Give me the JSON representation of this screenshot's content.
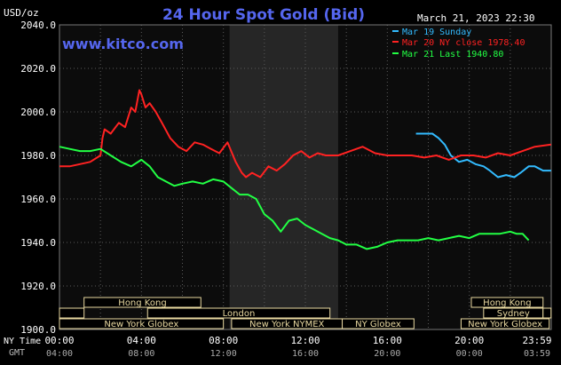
{
  "header": {
    "units": "USD/oz",
    "title": "24 Hour Spot Gold (Bid)",
    "timestamp": "March 21, 2023 22:30",
    "watermark": "www.kitco.com"
  },
  "legend": [
    {
      "label": "Mar 19 Sunday",
      "color": "#33bbff"
    },
    {
      "label": "Mar 20 NY close 1978.40",
      "color": "#ff2222"
    },
    {
      "label": "Mar 21 Last 1940.80",
      "color": "#22ff44"
    }
  ],
  "axis_labels": {
    "ny_time": "NY Time",
    "gmt": "GMT"
  },
  "markets": {
    "row1": [
      {
        "name": "Hong Kong"
      },
      {
        "name": "Hong Kong"
      }
    ],
    "row2": [
      {
        "name": "London"
      },
      {
        "name": "Sydney"
      }
    ],
    "row3": [
      {
        "name": "New York Globex"
      },
      {
        "name": "New York NYMEX"
      },
      {
        "name": "NY Globex"
      },
      {
        "name": "New York Globex"
      }
    ]
  },
  "colors": {
    "background": "#000000",
    "plot_bg": "#0c0c0c",
    "shade": "#262626",
    "grid": "#5a5a5a",
    "market_box": "#e8d8a0",
    "text": "#ffffff",
    "title": "#5566ee"
  },
  "chart_data": {
    "type": "line",
    "title": "24 Hour Spot Gold (Bid)",
    "ylabel": "USD/oz",
    "ylim": [
      1900,
      2040
    ],
    "xlim_hours": [
      0,
      24
    ],
    "y_ticks": [
      "2040.0",
      "2020.0",
      "2000.0",
      "1980.0",
      "1960.0",
      "1940.0",
      "1920.0",
      "1900.0"
    ],
    "x_ticks_ny": [
      "00:00",
      "04:00",
      "08:00",
      "12:00",
      "16:00",
      "20:00",
      "23:59"
    ],
    "x_ticks_gmt": [
      "04:00",
      "08:00",
      "12:00",
      "16:00",
      "20:00",
      "00:00",
      "03:59"
    ],
    "shaded_hours": [
      8.3,
      13.6
    ],
    "series": [
      {
        "name": "Mar 19 Sunday",
        "color": "#33bbff",
        "x": [
          17.4,
          17.9,
          18.2,
          18.5,
          18.8,
          19.1,
          19.5,
          19.9,
          20.3,
          20.7,
          21.0,
          21.4,
          21.8,
          22.2,
          22.5,
          22.9,
          23.2,
          23.6,
          23.99
        ],
        "y": [
          1990,
          1990,
          1990,
          1988,
          1985,
          1980,
          1977,
          1978,
          1976,
          1975,
          1973,
          1970,
          1971,
          1970,
          1972,
          1975,
          1975,
          1973,
          1973
        ]
      },
      {
        "name": "Mar 20 NY close 1978.40",
        "color": "#ff2222",
        "x": [
          0,
          0.5,
          1.0,
          1.5,
          2.0,
          2.1,
          2.2,
          2.5,
          2.9,
          3.2,
          3.5,
          3.7,
          3.9,
          4.0,
          4.2,
          4.4,
          4.7,
          5.0,
          5.4,
          5.8,
          6.2,
          6.6,
          7.0,
          7.4,
          7.8,
          8.2,
          8.6,
          8.9,
          9.1,
          9.4,
          9.8,
          10.2,
          10.6,
          11.0,
          11.4,
          11.8,
          12.2,
          12.6,
          13.0,
          13.6,
          14.2,
          14.8,
          15.4,
          16.0,
          16.6,
          17.2,
          17.8,
          18.4,
          19.0,
          19.6,
          20.2,
          20.8,
          21.4,
          22.0,
          22.6,
          23.2,
          23.99
        ],
        "y": [
          1975,
          1975,
          1976,
          1977,
          1980,
          1988,
          1992,
          1990,
          1995,
          1993,
          2002,
          2000,
          2010,
          2008,
          2002,
          2004,
          2000,
          1995,
          1988,
          1984,
          1982,
          1986,
          1985,
          1983,
          1981,
          1986,
          1977,
          1972,
          1970,
          1972,
          1970,
          1975,
          1973,
          1976,
          1980,
          1982,
          1979,
          1981,
          1980,
          1980,
          1982,
          1984,
          1981,
          1980,
          1980,
          1980,
          1979,
          1980,
          1978,
          1980,
          1980,
          1979,
          1981,
          1980,
          1982,
          1984,
          1985
        ]
      },
      {
        "name": "Mar 21 Last 1940.80",
        "color": "#22ff44",
        "x": [
          0,
          0.5,
          1.0,
          1.5,
          2.0,
          2.5,
          3.0,
          3.5,
          4.0,
          4.4,
          4.8,
          5.2,
          5.6,
          6.0,
          6.5,
          7.0,
          7.5,
          8.0,
          8.4,
          8.8,
          9.2,
          9.6,
          10.0,
          10.4,
          10.8,
          11.2,
          11.6,
          12.0,
          12.4,
          12.8,
          13.2,
          13.6,
          14.0,
          14.5,
          15.0,
          15.5,
          16.0,
          16.5,
          17.0,
          17.5,
          18.0,
          18.5,
          19.0,
          19.5,
          20.0,
          20.5,
          21.0,
          21.5,
          22.0,
          22.3,
          22.6,
          22.9
        ],
        "y": [
          1984,
          1983,
          1982,
          1982,
          1983,
          1980,
          1977,
          1975,
          1978,
          1975,
          1970,
          1968,
          1966,
          1967,
          1968,
          1967,
          1969,
          1968,
          1965,
          1962,
          1962,
          1960,
          1953,
          1950,
          1945,
          1950,
          1951,
          1948,
          1946,
          1944,
          1942,
          1941,
          1939,
          1939,
          1937,
          1938,
          1940,
          1941,
          1941,
          1941,
          1942,
          1941,
          1942,
          1943,
          1942,
          1944,
          1944,
          1944,
          1945,
          1944,
          1944,
          1941
        ]
      }
    ]
  }
}
